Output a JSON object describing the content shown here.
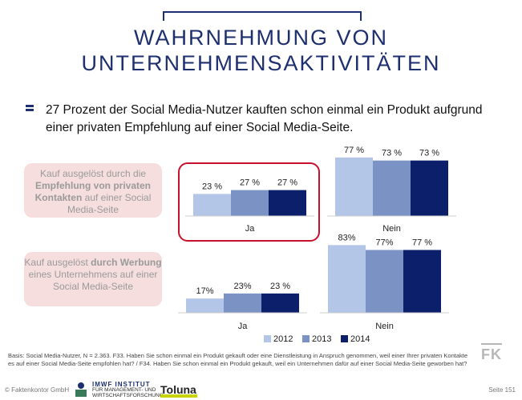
{
  "title": {
    "line1": "WAHRNEHMUNG VON",
    "line2": "UNTERNEHMENSAKTIVITÄTEN"
  },
  "headline": "27 Prozent der Social Media-Nutzer kauften schon einmal ein Produkt aufgrund einer privaten Empfehlung auf einer Social Media-Seite.",
  "labels": {
    "box1": {
      "pre": "Kauf ausgelöst durch die",
      "bold": "Empfehlung von privaten Kontakten",
      "post": "auf einer Social Media-Seite"
    },
    "box2": {
      "pre": "Kauf ausgelöst",
      "bold": "durch Werbung",
      "post": "eines Unternehmens auf einer Social Media-Seite"
    }
  },
  "colors": {
    "2012": "#b4c6e7",
    "2013": "#7b93c4",
    "2014": "#0b1f6b",
    "accent": "#1d2f6f",
    "highlight": "#c8102e"
  },
  "chart_data": [
    {
      "type": "bar",
      "categories": [
        "Ja",
        "Nein"
      ],
      "series": [
        {
          "name": "2012",
          "values": [
            23,
            77
          ]
        },
        {
          "name": "2013",
          "values": [
            27,
            73
          ]
        },
        {
          "name": "2014",
          "values": [
            27,
            73
          ]
        }
      ],
      "data_labels": [
        [
          "23 %",
          "27 %",
          "27 %"
        ],
        [
          "77 %",
          "73 %",
          "73 %"
        ]
      ],
      "ylim": [
        0,
        100
      ],
      "grid": false
    },
    {
      "type": "bar",
      "categories": [
        "Ja",
        "Nein"
      ],
      "series": [
        {
          "name": "2012",
          "values": [
            17,
            83
          ]
        },
        {
          "name": "2013",
          "values": [
            23,
            77
          ]
        },
        {
          "name": "2014",
          "values": [
            23,
            77
          ]
        }
      ],
      "data_labels": [
        [
          "17%",
          "23%",
          "23 %"
        ],
        [
          "83%",
          "77%",
          "77 %"
        ]
      ],
      "ylim": [
        0,
        100
      ],
      "grid": false
    }
  ],
  "legend": [
    "2012",
    "2013",
    "2014"
  ],
  "footnote": "Basis: Social Media-Nutzer, N = 2.363. F33. Haben Sie schon einmal ein Produkt gekauft oder eine Dienstleistung in Anspruch genommen, weil einer Ihrer privaten Kontakte es auf einer Social Media-Seite empfohlen hat? / F34. Haben Sie schon einmal ein Produkt gekauft, weil ein Unternehmen dafür auf einer Social Media-Seite geworben hat?",
  "footer": {
    "copyright": "© Faktenkontor GmbH",
    "imwf_name": "IMWF INSTITUT",
    "imwf_sub1": "FÜR MANAGEMENT- UND",
    "imwf_sub2": "WIRTSCHAFTSFORSCHUNG",
    "toluna": "Toluna",
    "page": "Seite 151",
    "fk": "FK"
  }
}
